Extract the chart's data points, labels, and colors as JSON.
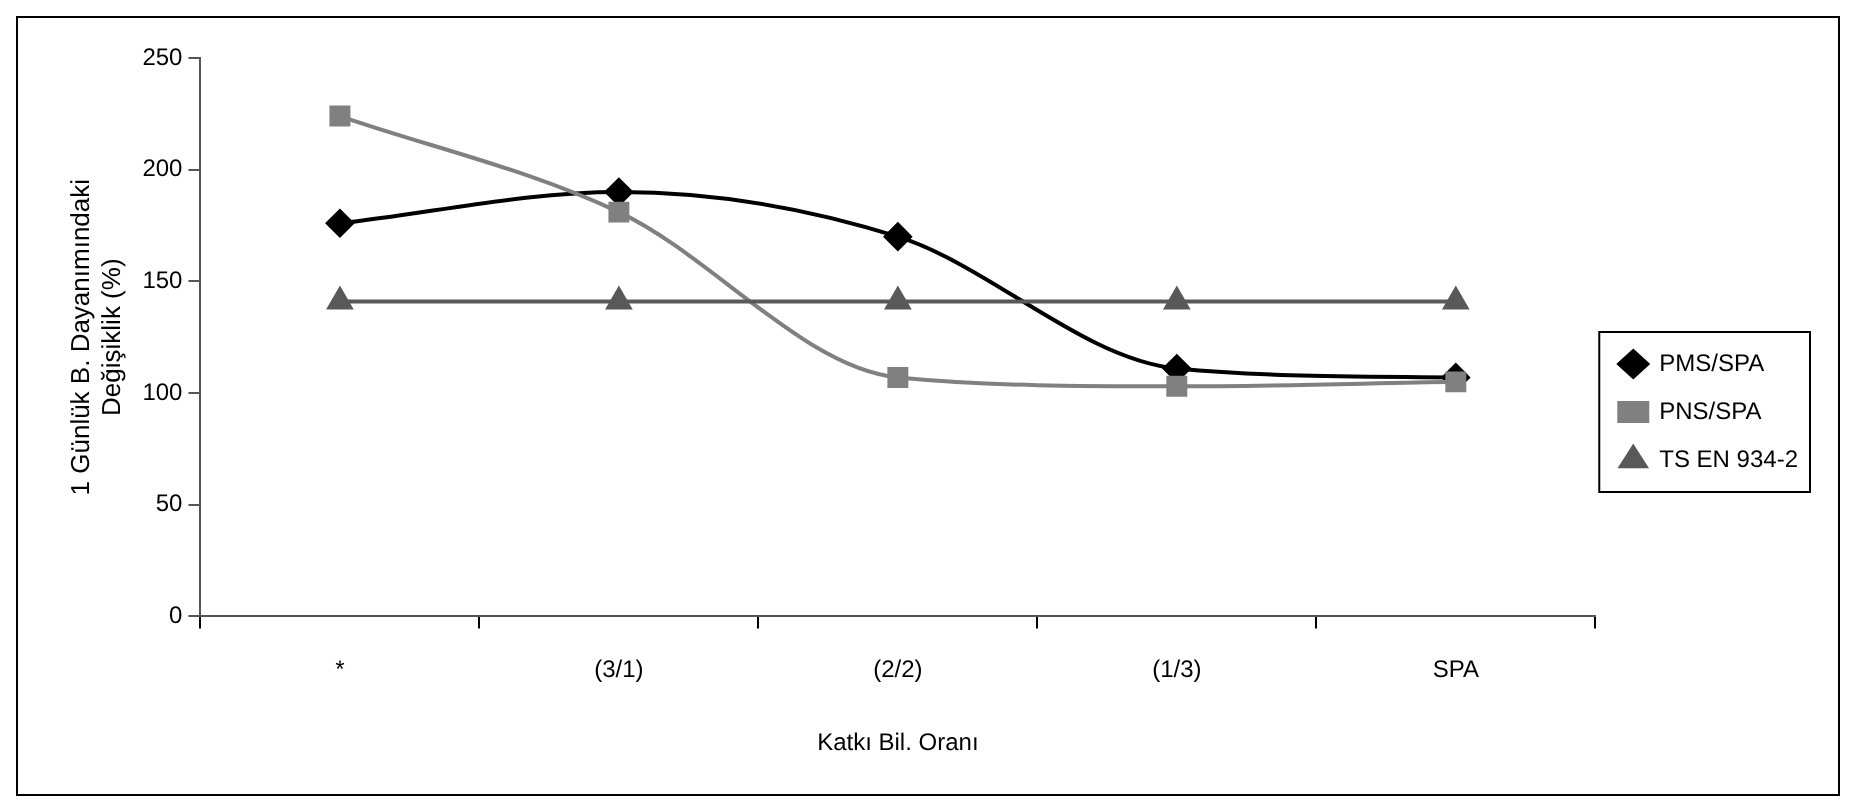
{
  "chart_data": {
    "type": "line",
    "xlabel": "Katkı Bil. Oranı",
    "ylabel": "1 Günlük B. Dayanımındaki\nDeğişiklik (%)",
    "categories": [
      "*",
      "(3/1)",
      "(2/2)",
      "(1/3)",
      "SPA"
    ],
    "series": [
      {
        "name": "PMS/SPA",
        "color": "#000000",
        "marker": "diamond",
        "values": [
          176,
          190,
          170,
          111,
          107
        ]
      },
      {
        "name": "PNS/SPA",
        "color": "#808080",
        "marker": "square",
        "values": [
          224,
          181,
          107,
          103,
          105
        ]
      },
      {
        "name": "TS EN 934-2",
        "color": "#595959",
        "marker": "triangle",
        "values": [
          141,
          141,
          141,
          141,
          141
        ]
      }
    ],
    "ylim": [
      0,
      250
    ],
    "yticks": [
      0,
      50,
      100,
      150,
      200,
      250
    ],
    "grid": false,
    "legend": "right"
  }
}
